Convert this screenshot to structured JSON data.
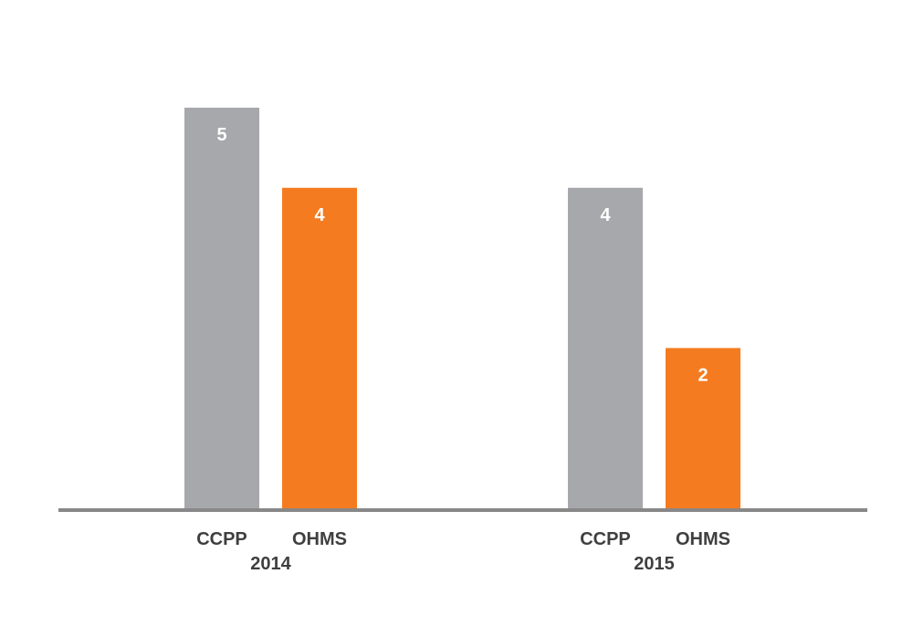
{
  "chart_data": {
    "type": "bar",
    "title": "",
    "xlabel": "",
    "ylabel": "",
    "groups": [
      {
        "label": "2014",
        "bars": [
          {
            "category": "CCPP",
            "value": 5,
            "color": "#a7a8ab"
          },
          {
            "category": "OHMS",
            "value": 4,
            "color": "#f47b20"
          }
        ]
      },
      {
        "label": "2015",
        "bars": [
          {
            "category": "CCPP",
            "value": 4,
            "color": "#a7a8ab"
          },
          {
            "category": "OHMS",
            "value": 2,
            "color": "#f47b20"
          }
        ]
      }
    ],
    "ylim": [
      0,
      5
    ],
    "grid": false,
    "legend": "none",
    "axis_color": "#888888"
  }
}
